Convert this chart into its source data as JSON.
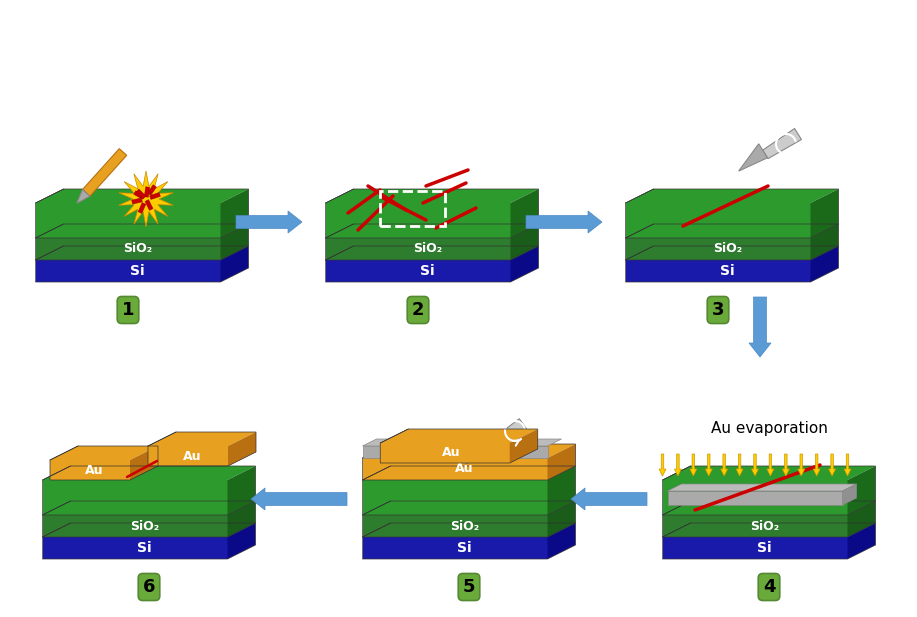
{
  "bg_color": "#ffffff",
  "si_color": "#1a1aaa",
  "si_dark": "#0a0a88",
  "green_top": "#2d9a2d",
  "green_front": "#2e7d2e",
  "green_side": "#1a6a1a",
  "sio2_front": "#2e7d2e",
  "sio2_side": "#1a5c1a",
  "gold_top": "#e8a020",
  "gold_side": "#b87010",
  "gray_mask": "#aaaaaa",
  "gray_mask_top": "#bbbbbb",
  "gray_mask_edge": "#888888",
  "arrow_color": "#5b9bd5",
  "arrow_edge": "#4a8ac4",
  "red_fiber": "#cc0000",
  "yellow_arrow": "#ffcc00",
  "yellow_arrow_edge": "#cc9900",
  "star_fill": "#ffcc00",
  "star_edge": "#cc8800",
  "frag_fill": "#cc0000",
  "frag_edge": "#880000",
  "label_bg": "#6aaa3a",
  "label_edge": "#558833",
  "pencil_body": "#e8a020",
  "pencil_edge": "#b87010",
  "pencil_tip": "#aaaaaa",
  "scalpel_handle": "#cccccc",
  "scalpel_blade": "#aaaaaa",
  "scalpel_edge": "#888888",
  "white": "#ffffff",
  "sio2_text": "SiO₂",
  "si_text": "Si",
  "au_text": "Au",
  "evap_text": "Au evaporation",
  "outline_color": "#333333"
}
